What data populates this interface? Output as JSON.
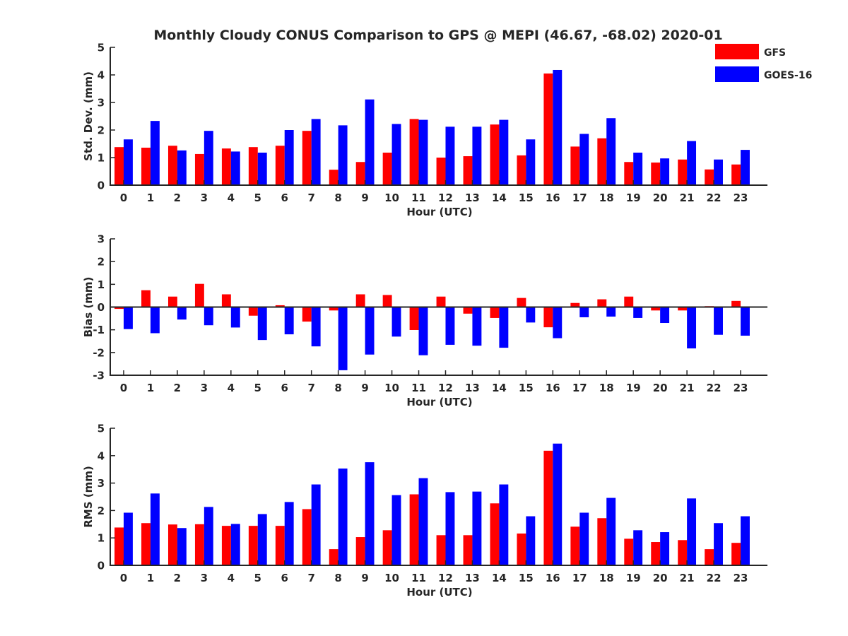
{
  "figure": {
    "title": "Monthly Cloudy CONUS Comparison to GPS @ MEPI (46.67, -68.02) 2020-01",
    "legend_position": "top-right",
    "series_colors": {
      "GFS": "#ff0000",
      "GOES-16": "#0000ff"
    }
  },
  "chart_data": [
    {
      "type": "bar",
      "xlabel": "Hour (UTC)",
      "ylabel": "Std. Dev. (mm)",
      "ylim": [
        0,
        5
      ],
      "yticks": [
        0,
        1,
        2,
        3,
        4,
        5
      ],
      "categories": [
        "0",
        "1",
        "2",
        "3",
        "4",
        "5",
        "6",
        "7",
        "8",
        "9",
        "10",
        "11",
        "12",
        "13",
        "14",
        "15",
        "16",
        "17",
        "18",
        "19",
        "20",
        "21",
        "22",
        "23"
      ],
      "legend": "top-right",
      "series": [
        {
          "name": "GFS",
          "color": "#ff0000",
          "values": [
            1.38,
            1.36,
            1.43,
            1.13,
            1.33,
            1.38,
            1.43,
            1.97,
            0.56,
            0.84,
            1.18,
            2.4,
            1.0,
            1.05,
            2.2,
            1.08,
            4.05,
            1.4,
            1.7,
            0.84,
            0.82,
            0.93,
            0.57,
            0.75
          ]
        },
        {
          "name": "GOES-16",
          "color": "#0000ff",
          "values": [
            1.66,
            2.33,
            1.26,
            1.97,
            1.22,
            1.18,
            2.0,
            2.4,
            2.17,
            3.11,
            2.22,
            2.37,
            2.12,
            2.12,
            2.37,
            1.66,
            4.18,
            1.86,
            2.43,
            1.18,
            0.97,
            1.6,
            0.93,
            1.28
          ]
        }
      ]
    },
    {
      "type": "bar",
      "xlabel": "Hour (UTC)",
      "ylabel": "Bias (mm)",
      "ylim": [
        -3,
        3
      ],
      "yticks": [
        -3,
        -2,
        -1,
        0,
        1,
        2,
        3
      ],
      "categories": [
        "0",
        "1",
        "2",
        "3",
        "4",
        "5",
        "6",
        "7",
        "8",
        "9",
        "10",
        "11",
        "12",
        "13",
        "14",
        "15",
        "16",
        "17",
        "18",
        "19",
        "20",
        "21",
        "22",
        "23"
      ],
      "zero_line": true,
      "series": [
        {
          "name": "GFS",
          "color": "#ff0000",
          "values": [
            -0.08,
            0.74,
            0.46,
            1.02,
            0.56,
            -0.38,
            0.08,
            -0.64,
            -0.15,
            0.56,
            0.53,
            -1.01,
            0.46,
            -0.29,
            -0.48,
            0.4,
            -0.89,
            0.18,
            0.34,
            0.46,
            -0.15,
            -0.15,
            0.04,
            0.27
          ]
        },
        {
          "name": "GOES-16",
          "color": "#0000ff",
          "values": [
            -0.97,
            -1.15,
            -0.55,
            -0.8,
            -0.9,
            -1.45,
            -1.2,
            -1.73,
            -2.78,
            -2.09,
            -1.3,
            -2.12,
            -1.66,
            -1.7,
            -1.79,
            -0.68,
            -1.37,
            -0.45,
            -0.42,
            -0.48,
            -0.7,
            -1.82,
            -1.22,
            -1.26
          ]
        }
      ]
    },
    {
      "type": "bar",
      "xlabel": "Hour (UTC)",
      "ylabel": "RMS (mm)",
      "ylim": [
        0,
        5
      ],
      "yticks": [
        0,
        1,
        2,
        3,
        4,
        5
      ],
      "categories": [
        "0",
        "1",
        "2",
        "3",
        "4",
        "5",
        "6",
        "7",
        "8",
        "9",
        "10",
        "11",
        "12",
        "13",
        "14",
        "15",
        "16",
        "17",
        "18",
        "19",
        "20",
        "21",
        "22",
        "23"
      ],
      "series": [
        {
          "name": "GFS",
          "color": "#ff0000",
          "values": [
            1.38,
            1.54,
            1.49,
            1.5,
            1.44,
            1.44,
            1.44,
            2.05,
            0.59,
            1.03,
            1.28,
            2.59,
            1.1,
            1.1,
            2.26,
            1.16,
            4.18,
            1.41,
            1.72,
            0.97,
            0.85,
            0.92,
            0.59,
            0.82
          ]
        },
        {
          "name": "GOES-16",
          "color": "#0000ff",
          "values": [
            1.92,
            2.62,
            1.36,
            2.13,
            1.51,
            1.87,
            2.31,
            2.95,
            3.53,
            3.76,
            2.56,
            3.18,
            2.67,
            2.69,
            2.95,
            1.79,
            4.44,
            1.92,
            2.46,
            1.28,
            1.21,
            2.44,
            1.54,
            1.79
          ]
        }
      ]
    }
  ]
}
